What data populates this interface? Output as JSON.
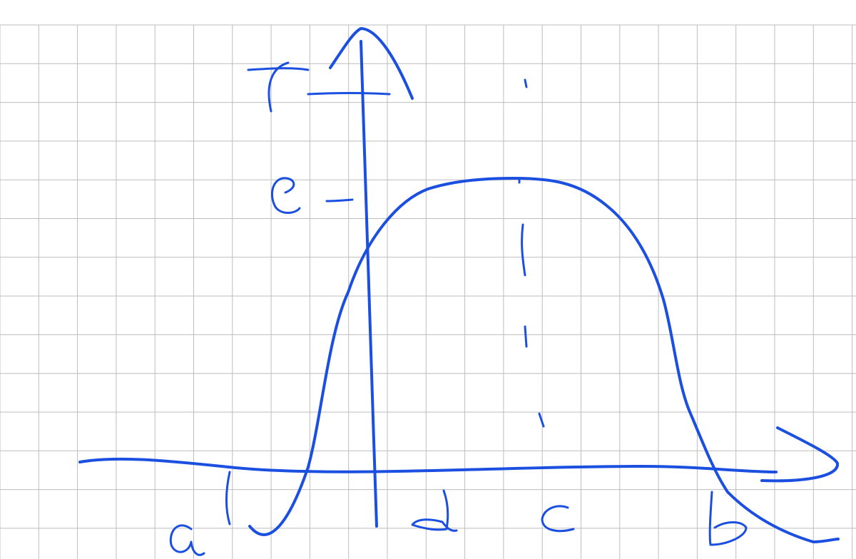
{
  "sketch": {
    "axis_labels": {
      "y_axis": "f",
      "x_axis_arrow": ""
    },
    "marks": {
      "y_tick": "e",
      "x_ticks": [
        "a",
        "d",
        "c",
        "b"
      ]
    },
    "ink_color": "#1b4fe0",
    "grid_color": "#bdbdbd",
    "background": "#ffffff"
  }
}
